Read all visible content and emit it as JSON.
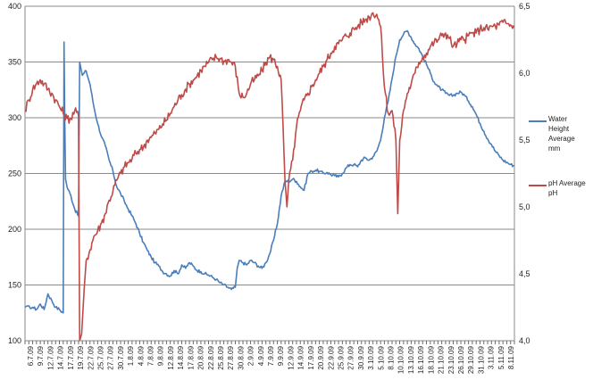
{
  "chart_data": {
    "type": "line",
    "title": "",
    "xlabel": "",
    "ylabel": "",
    "y2label": "",
    "grid": "horizontal",
    "legend_position": "right",
    "y_left": {
      "min": 100,
      "max": 400,
      "ticks": [
        "100",
        "150",
        "200",
        "250",
        "300",
        "350",
        "400"
      ]
    },
    "y_right": {
      "min": 4.0,
      "max": 6.5,
      "ticks": [
        "4,0",
        "4,5",
        "5,0",
        "5,5",
        "6,0",
        "6,5"
      ]
    },
    "x_tick_labels": [
      "6.7.09",
      "9.7.09",
      "12.7.09",
      "14.7.09",
      "17.7.09",
      "19.7.09",
      "22.7.09",
      "25.7.09",
      "27.7.09",
      "30.7.09",
      "1.8.09",
      "4.8.09",
      "7.8.09",
      "9.8.09",
      "12.8.09",
      "14.8.09",
      "17.8.09",
      "20.8.09",
      "22.8.09",
      "25.8.09",
      "27.8.09",
      "30.8.09",
      "2.9.09",
      "4.9.09",
      "7.9.09",
      "9.9.09",
      "12.9.09",
      "14.9.09",
      "17.9.09",
      "20.9.09",
      "22.9.09",
      "25.9.09",
      "27.9.09",
      "30.9.09",
      "3.10.09",
      "5.10.09",
      "8.10.09",
      "10.10.09",
      "13.10.09",
      "16.10.09",
      "18.10.09",
      "21.10.09",
      "23.10.09",
      "26.10.09",
      "29.10.09",
      "31.10.09",
      "3.11.09",
      "5.11.09",
      "8.11.09"
    ],
    "x_day_range": [
      0,
      128
    ],
    "series": [
      {
        "name": "Water Height Average mm",
        "axis": "left",
        "color": "#4a7ebb",
        "points": [
          [
            0,
            130
          ],
          [
            2,
            130
          ],
          [
            3,
            128
          ],
          [
            4,
            133
          ],
          [
            5,
            128
          ],
          [
            6,
            142
          ],
          [
            7,
            136
          ],
          [
            8,
            130
          ],
          [
            9,
            128
          ],
          [
            10,
            125
          ],
          [
            10.2,
            368
          ],
          [
            10.4,
            300
          ],
          [
            10.6,
            245
          ],
          [
            11,
            238
          ],
          [
            12,
            230
          ],
          [
            13,
            218
          ],
          [
            14,
            212
          ],
          [
            14.3,
            350
          ],
          [
            15,
            338
          ],
          [
            16,
            342
          ],
          [
            17,
            330
          ],
          [
            18,
            310
          ],
          [
            19,
            295
          ],
          [
            20,
            283
          ],
          [
            21,
            275
          ],
          [
            22,
            262
          ],
          [
            23,
            252
          ],
          [
            24,
            238
          ],
          [
            25,
            232
          ],
          [
            26,
            225
          ],
          [
            27,
            218
          ],
          [
            28,
            212
          ],
          [
            29,
            205
          ],
          [
            30,
            196
          ],
          [
            31,
            188
          ],
          [
            32,
            181
          ],
          [
            33,
            175
          ],
          [
            34,
            170
          ],
          [
            35,
            167
          ],
          [
            36,
            162
          ],
          [
            37,
            160
          ],
          [
            38,
            158
          ],
          [
            39,
            163
          ],
          [
            40,
            160
          ],
          [
            41,
            168
          ],
          [
            42,
            165
          ],
          [
            43,
            170
          ],
          [
            44,
            167
          ],
          [
            45,
            163
          ],
          [
            46,
            162
          ],
          [
            47,
            160
          ],
          [
            48,
            159
          ],
          [
            49,
            157
          ],
          [
            50,
            155
          ],
          [
            51,
            152
          ],
          [
            52,
            150
          ],
          [
            53,
            148
          ],
          [
            54,
            146
          ],
          [
            55,
            148
          ],
          [
            55.5,
            165
          ],
          [
            56,
            172
          ],
          [
            57,
            170
          ],
          [
            58,
            168
          ],
          [
            59,
            172
          ],
          [
            60,
            170
          ],
          [
            61,
            167
          ],
          [
            62,
            165
          ],
          [
            63,
            170
          ],
          [
            64,
            178
          ],
          [
            65,
            190
          ],
          [
            66,
            205
          ],
          [
            67,
            230
          ],
          [
            68,
            243
          ],
          [
            69,
            243
          ],
          [
            70,
            245
          ],
          [
            71,
            243
          ],
          [
            72,
            238
          ],
          [
            73,
            235
          ],
          [
            74,
            250
          ],
          [
            75,
            252
          ],
          [
            76,
            253
          ],
          [
            77,
            252
          ],
          [
            78,
            250
          ],
          [
            79,
            251
          ],
          [
            80,
            249
          ],
          [
            81,
            248
          ],
          [
            82,
            247
          ],
          [
            83,
            250
          ],
          [
            84,
            255
          ],
          [
            85,
            258
          ],
          [
            86,
            258
          ],
          [
            87,
            256
          ],
          [
            88,
            262
          ],
          [
            89,
            264
          ],
          [
            90,
            262
          ],
          [
            91,
            265
          ],
          [
            92,
            270
          ],
          [
            93,
            280
          ],
          [
            94,
            300
          ],
          [
            95,
            315
          ],
          [
            96,
            335
          ],
          [
            97,
            355
          ],
          [
            98,
            370
          ],
          [
            99,
            375
          ],
          [
            100,
            378
          ],
          [
            101,
            372
          ],
          [
            102,
            366
          ],
          [
            103,
            362
          ],
          [
            104,
            355
          ],
          [
            105,
            348
          ],
          [
            106,
            340
          ],
          [
            107,
            332
          ],
          [
            108,
            328
          ],
          [
            109,
            325
          ],
          [
            110,
            322
          ],
          [
            111,
            320
          ],
          [
            112,
            320
          ],
          [
            113,
            322
          ],
          [
            114,
            323
          ],
          [
            115,
            320
          ],
          [
            116,
            315
          ],
          [
            117,
            310
          ],
          [
            118,
            303
          ],
          [
            119,
            295
          ],
          [
            120,
            288
          ],
          [
            121,
            281
          ],
          [
            122,
            276
          ],
          [
            123,
            270
          ],
          [
            124,
            266
          ],
          [
            125,
            262
          ],
          [
            126,
            260
          ],
          [
            127,
            258
          ],
          [
            128,
            257
          ]
        ]
      },
      {
        "name": "pH Average pH",
        "axis": "right",
        "color": "#be4b48",
        "points": [
          [
            0,
            5.72
          ],
          [
            1,
            5.8
          ],
          [
            2,
            5.88
          ],
          [
            3,
            5.92
          ],
          [
            4,
            5.95
          ],
          [
            5,
            5.92
          ],
          [
            6,
            5.88
          ],
          [
            7,
            5.85
          ],
          [
            8,
            5.8
          ],
          [
            9,
            5.75
          ],
          [
            10,
            5.7
          ],
          [
            11,
            5.66
          ],
          [
            12,
            5.66
          ],
          [
            13,
            5.72
          ],
          [
            14,
            5.68
          ],
          [
            14.3,
            4.0
          ],
          [
            14.8,
            4.05
          ],
          [
            15.5,
            4.4
          ],
          [
            16,
            4.6
          ],
          [
            17,
            4.68
          ],
          [
            18,
            4.78
          ],
          [
            19,
            4.82
          ],
          [
            20,
            4.88
          ],
          [
            21,
            4.95
          ],
          [
            22,
            5.05
          ],
          [
            23,
            5.12
          ],
          [
            24,
            5.2
          ],
          [
            25,
            5.25
          ],
          [
            26,
            5.3
          ],
          [
            27,
            5.33
          ],
          [
            28,
            5.36
          ],
          [
            29,
            5.4
          ],
          [
            30,
            5.43
          ],
          [
            31,
            5.45
          ],
          [
            32,
            5.5
          ],
          [
            33,
            5.52
          ],
          [
            34,
            5.55
          ],
          [
            35,
            5.58
          ],
          [
            36,
            5.62
          ],
          [
            37,
            5.65
          ],
          [
            38,
            5.7
          ],
          [
            39,
            5.75
          ],
          [
            40,
            5.8
          ],
          [
            41,
            5.84
          ],
          [
            42,
            5.88
          ],
          [
            43,
            5.92
          ],
          [
            44,
            5.95
          ],
          [
            45,
            5.98
          ],
          [
            46,
            6.02
          ],
          [
            47,
            6.05
          ],
          [
            48,
            6.08
          ],
          [
            49,
            6.1
          ],
          [
            50,
            6.12
          ],
          [
            51,
            6.11
          ],
          [
            52,
            6.09
          ],
          [
            53,
            6.1
          ],
          [
            54,
            6.08
          ],
          [
            55,
            6.05
          ],
          [
            56,
            5.85
          ],
          [
            57,
            5.82
          ],
          [
            58,
            5.85
          ],
          [
            59,
            5.92
          ],
          [
            60,
            5.95
          ],
          [
            61,
            5.98
          ],
          [
            62,
            6.02
          ],
          [
            63,
            6.08
          ],
          [
            64,
            6.12
          ],
          [
            65,
            6.1
          ],
          [
            66,
            6.05
          ],
          [
            67,
            5.95
          ],
          [
            68,
            5.2
          ],
          [
            68.5,
            5.0
          ],
          [
            69,
            5.2
          ],
          [
            70,
            5.35
          ],
          [
            71,
            5.6
          ],
          [
            72,
            5.72
          ],
          [
            73,
            5.8
          ],
          [
            74,
            5.85
          ],
          [
            75,
            5.9
          ],
          [
            76,
            5.95
          ],
          [
            77,
            6.0
          ],
          [
            78,
            6.05
          ],
          [
            79,
            6.1
          ],
          [
            80,
            6.15
          ],
          [
            81,
            6.2
          ],
          [
            82,
            6.22
          ],
          [
            83,
            6.25
          ],
          [
            84,
            6.28
          ],
          [
            85,
            6.3
          ],
          [
            86,
            6.33
          ],
          [
            87,
            6.35
          ],
          [
            88,
            6.38
          ],
          [
            89,
            6.4
          ],
          [
            90,
            6.42
          ],
          [
            91,
            6.45
          ],
          [
            92,
            6.44
          ],
          [
            93,
            6.35
          ],
          [
            94,
            5.9
          ],
          [
            95,
            5.7
          ],
          [
            96,
            5.72
          ],
          [
            97,
            5.5
          ],
          [
            97.5,
            4.95
          ],
          [
            98,
            5.5
          ],
          [
            99,
            5.72
          ],
          [
            100,
            5.85
          ],
          [
            101,
            5.92
          ],
          [
            102,
            6.0
          ],
          [
            103,
            6.08
          ],
          [
            104,
            6.12
          ],
          [
            105,
            6.15
          ],
          [
            106,
            6.2
          ],
          [
            107,
            6.23
          ],
          [
            108,
            6.25
          ],
          [
            109,
            6.28
          ],
          [
            110,
            6.3
          ],
          [
            111,
            6.26
          ],
          [
            112,
            6.2
          ],
          [
            113,
            6.22
          ],
          [
            114,
            6.25
          ],
          [
            115,
            6.25
          ],
          [
            116,
            6.28
          ],
          [
            117,
            6.3
          ],
          [
            118,
            6.3
          ],
          [
            119,
            6.33
          ],
          [
            120,
            6.34
          ],
          [
            121,
            6.33
          ],
          [
            122,
            6.35
          ],
          [
            123,
            6.35
          ],
          [
            124,
            6.36
          ],
          [
            125,
            6.38
          ],
          [
            126,
            6.37
          ],
          [
            127,
            6.36
          ],
          [
            128,
            6.34
          ]
        ]
      }
    ]
  }
}
